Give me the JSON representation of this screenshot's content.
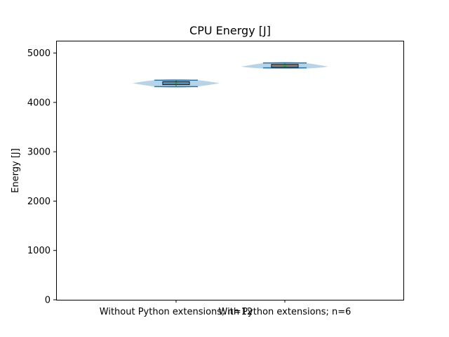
{
  "chart_data": {
    "type": "violin",
    "title": "CPU Energy [J]",
    "xlabel": "",
    "ylabel": "Energy [J]",
    "ylim": [
      0,
      5250
    ],
    "yticks": [
      0,
      1000,
      2000,
      3000,
      4000,
      5000
    ],
    "categories": [
      "Without Python extensions; n=12",
      "With Python extensions; n=6"
    ],
    "groups": [
      {
        "min": 4320,
        "q1": 4360,
        "median": 4390,
        "mean": 4385,
        "q3": 4420,
        "max": 4450,
        "n": 12
      },
      {
        "min": 4700,
        "q1": 4710,
        "median": 4740,
        "mean": 4745,
        "q3": 4770,
        "max": 4800,
        "n": 6
      }
    ],
    "grid": false,
    "colors": {
      "violin": "#a9cbe4",
      "whisker": "#1f77b4",
      "box": "#c8956a",
      "median": "#1f77b4"
    }
  }
}
